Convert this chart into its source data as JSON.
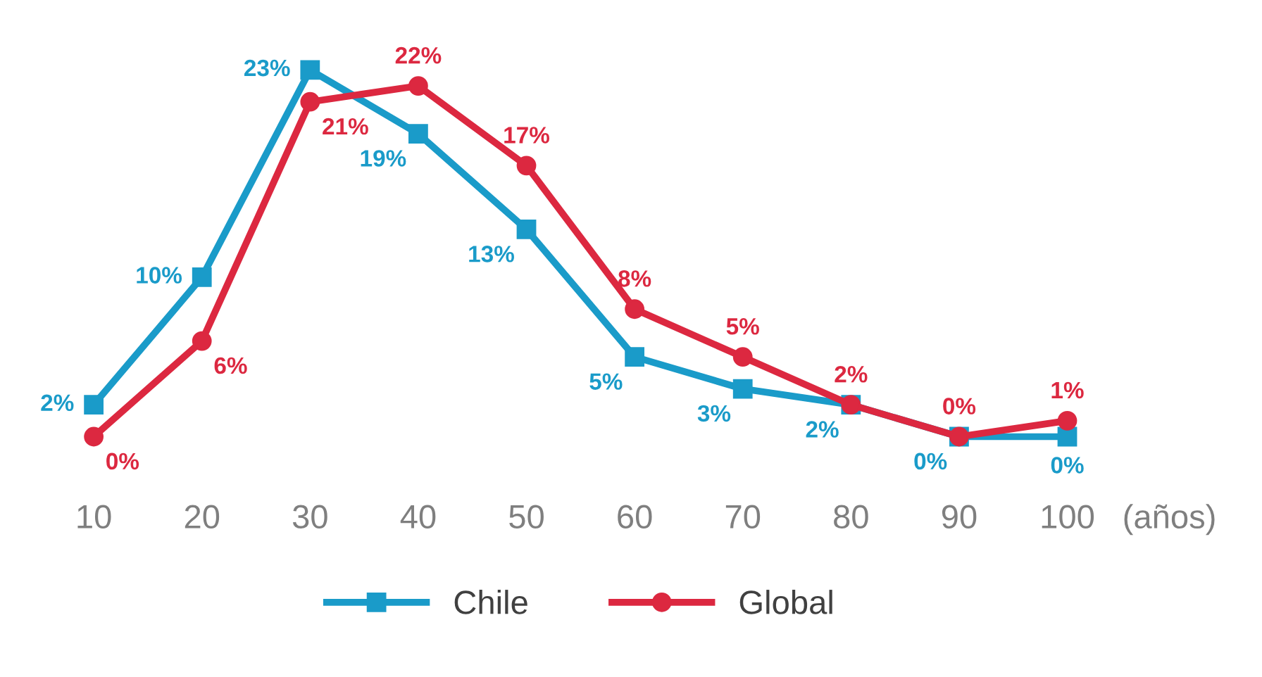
{
  "chart_data": {
    "type": "line",
    "categories": [
      "10",
      "20",
      "30",
      "40",
      "50",
      "60",
      "70",
      "80",
      "90",
      "100"
    ],
    "xlabel": "(años)",
    "series": [
      {
        "name": "Chile",
        "color": "#1a9bc9",
        "marker": "square",
        "values": [
          2,
          10,
          23,
          19,
          13,
          5,
          3,
          2,
          0,
          0
        ],
        "value_labels": [
          "2%",
          "10%",
          "23%",
          "19%",
          "13%",
          "5%",
          "3%",
          "2%",
          "0%",
          "0%"
        ]
      },
      {
        "name": "Global",
        "color": "#dc2840",
        "marker": "circle",
        "values": [
          0,
          6,
          21,
          22,
          17,
          8,
          5,
          2,
          0,
          1
        ],
        "value_labels": [
          "0%",
          "6%",
          "21%",
          "22%",
          "17%",
          "8%",
          "5%",
          "2%",
          "0%",
          "1%"
        ]
      }
    ],
    "legend": "bottom",
    "grid": false,
    "line_style": "solid"
  }
}
